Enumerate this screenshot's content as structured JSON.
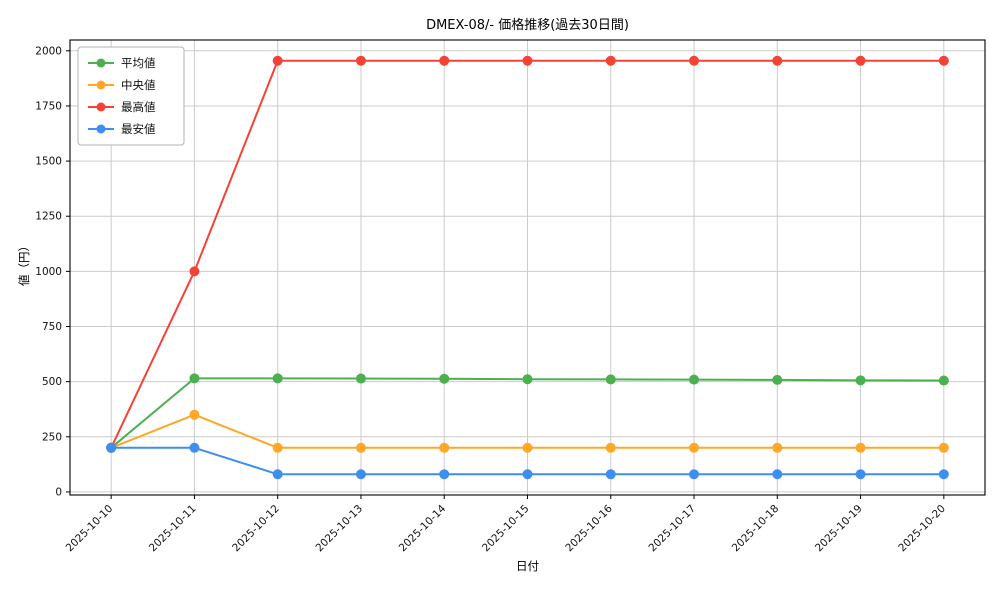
{
  "chart_data": {
    "type": "line",
    "title": "DMEX-08/- 価格推移(過去30日間)",
    "xlabel": "日付",
    "ylabel": "値（円）",
    "x": [
      "2025-10-10",
      "2025-10-11",
      "2025-10-12",
      "2025-10-13",
      "2025-10-14",
      "2025-10-15",
      "2025-10-16",
      "2025-10-17",
      "2025-10-18",
      "2025-10-19",
      "2025-10-20"
    ],
    "ylim": [
      0,
      2000
    ],
    "yticks": [
      0,
      250,
      500,
      750,
      1000,
      1250,
      1500,
      1750,
      2000
    ],
    "grid": true,
    "legend_position": "top-left",
    "series": [
      {
        "name": "平均値",
        "color": "#4caf50",
        "values": [
          200,
          515,
          515,
          514,
          513,
          511,
          510,
          509,
          508,
          506,
          505
        ]
      },
      {
        "name": "中央値",
        "color": "#ffa726",
        "values": [
          200,
          350,
          200,
          200,
          200,
          200,
          200,
          200,
          200,
          200,
          200
        ]
      },
      {
        "name": "最高値",
        "color": "#f44336",
        "values": [
          200,
          1000,
          1955,
          1955,
          1955,
          1955,
          1955,
          1955,
          1955,
          1955,
          1955
        ]
      },
      {
        "name": "最安値",
        "color": "#3d8ef0",
        "values": [
          200,
          200,
          80,
          80,
          80,
          80,
          80,
          80,
          80,
          80,
          80
        ]
      }
    ]
  }
}
